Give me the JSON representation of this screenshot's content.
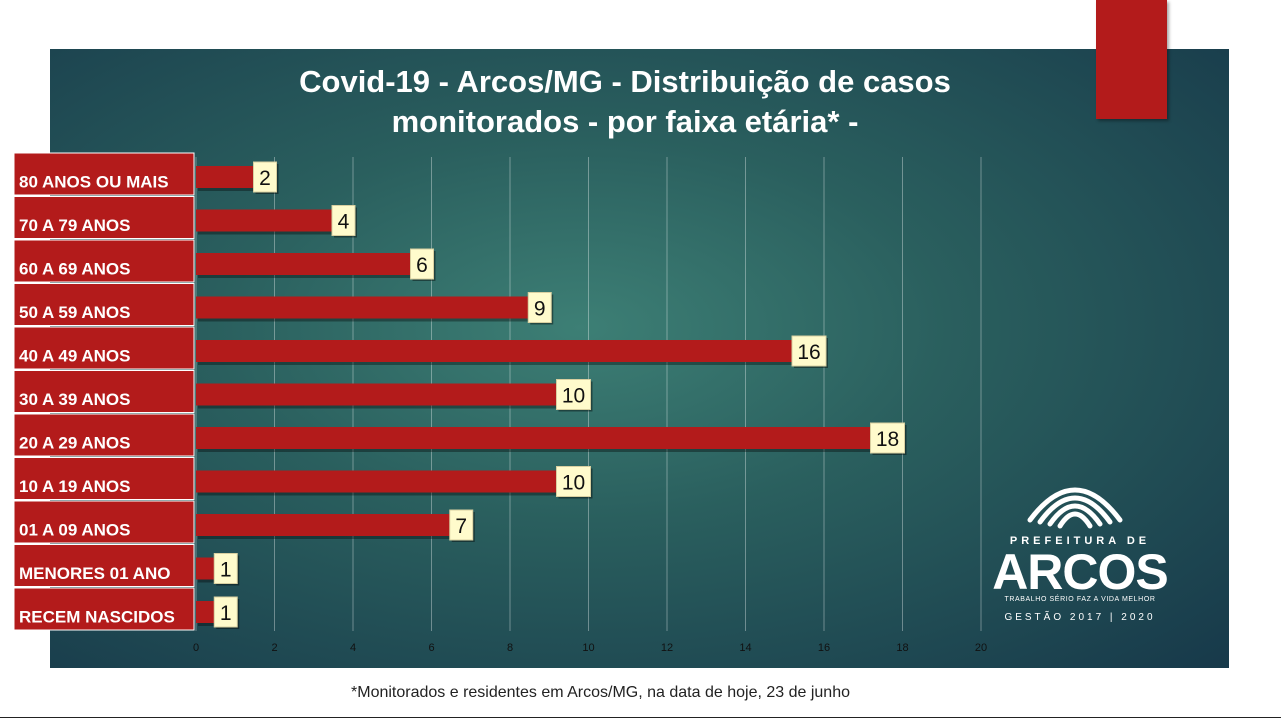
{
  "chart_data": {
    "type": "bar",
    "orientation": "horizontal",
    "title": "Covid-19 - Arcos/MG - Distribuição de casos monitorados - por faixa etária* -",
    "title_lines": [
      "Covid-19 - Arcos/MG - Distribuição de casos",
      "monitorados - por faixa etária* -"
    ],
    "categories": [
      "80 ANOS OU MAIS",
      "70 A 79 ANOS",
      "60 A 69 ANOS",
      "50 A 59 ANOS",
      "40 A 49 ANOS",
      "30 A 39 ANOS",
      "20 A 29 ANOS",
      "10 A 19 ANOS",
      "01 A 09 ANOS",
      "MENORES 01 ANO",
      "RECEM NASCIDOS"
    ],
    "values": [
      2,
      4,
      6,
      9,
      16,
      10,
      18,
      10,
      7,
      1,
      1
    ],
    "xlim": [
      0,
      20
    ],
    "xticks": [
      0,
      2,
      4,
      6,
      8,
      10,
      12,
      14,
      16,
      18,
      20
    ],
    "grid": true,
    "bar_color": "#b31b1b",
    "label_bg": "#fffbcc"
  },
  "footnote": "*Monitorados e residentes em Arcos/MG, na data de hoje, 23 de junho",
  "logo": {
    "pref": "PREFEITURA DE",
    "name": "ARCOS",
    "tagline": "TRABALHO SÉRIO FAZ A VIDA MELHOR",
    "gestao": "GESTÃO 2017 | 2020"
  },
  "colors": {
    "accent": "#b31b1b",
    "panel": "#2a5f5e"
  }
}
